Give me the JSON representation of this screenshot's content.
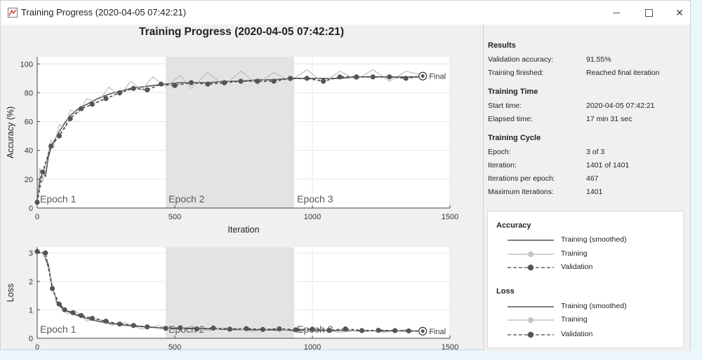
{
  "window": {
    "title": "Training Progress (2020-04-05 07:42:21)",
    "controls": {
      "minimize": "minimize-icon",
      "maximize": "maximize-icon",
      "close": "✕"
    }
  },
  "plot": {
    "title": "Training Progress (2020-04-05 07:42:21)",
    "epoch_labels": [
      "Epoch 1",
      "Epoch 2",
      "Epoch 3"
    ],
    "final_label": "Final"
  },
  "chart_data": [
    {
      "type": "line",
      "name": "accuracy",
      "xlabel": "Iteration",
      "ylabel": "Accuracy (%)",
      "xlim": [
        0,
        1500
      ],
      "ylim": [
        0,
        105
      ],
      "xticks": [
        0,
        500,
        1000,
        1500
      ],
      "yticks": [
        0,
        20,
        40,
        60,
        80,
        100
      ],
      "grid": true,
      "shaded_epochs": [
        [
          467,
          934
        ]
      ],
      "series": [
        {
          "name": "Training (smoothed)",
          "color": "#555555",
          "x": [
            0,
            10,
            20,
            30,
            40,
            50,
            60,
            80,
            100,
            120,
            150,
            180,
            220,
            260,
            300,
            340,
            380,
            420,
            467,
            520,
            560,
            620,
            680,
            740,
            800,
            860,
            920,
            980,
            1040,
            1100,
            1160,
            1220,
            1280,
            1340,
            1401
          ],
          "y": [
            5,
            20,
            25,
            22,
            35,
            42,
            46,
            53,
            59,
            64,
            69,
            72,
            76,
            79,
            81,
            83,
            84,
            85,
            86,
            87,
            87,
            87,
            88,
            88,
            89,
            89,
            90,
            90,
            90,
            90,
            91,
            91,
            91,
            91,
            91
          ]
        },
        {
          "name": "Training",
          "color": "#bdbdbd",
          "x": [
            0,
            10,
            20,
            30,
            40,
            50,
            60,
            80,
            100,
            120,
            150,
            180,
            220,
            260,
            300,
            340,
            380,
            420,
            467,
            520,
            560,
            620,
            680,
            740,
            800,
            860,
            920,
            980,
            1040,
            1100,
            1160,
            1220,
            1280,
            1340,
            1401
          ],
          "y": [
            5,
            28,
            18,
            30,
            38,
            47,
            42,
            58,
            55,
            68,
            66,
            76,
            73,
            84,
            78,
            88,
            82,
            91,
            84,
            92,
            83,
            94,
            85,
            95,
            86,
            94,
            88,
            96,
            87,
            95,
            89,
            96,
            88,
            95,
            92
          ]
        },
        {
          "name": "Validation",
          "color": "#444444",
          "dashed": true,
          "x": [
            0,
            20,
            50,
            80,
            120,
            160,
            200,
            250,
            300,
            350,
            400,
            450,
            500,
            560,
            620,
            680,
            740,
            800,
            860,
            920,
            980,
            1040,
            1100,
            1160,
            1220,
            1280,
            1340,
            1401
          ],
          "y": [
            4,
            25,
            43,
            50,
            62,
            69,
            72,
            76,
            80,
            83,
            82,
            86,
            85,
            87,
            86,
            87,
            88,
            88,
            88,
            90,
            90,
            88,
            91,
            91,
            91,
            91,
            90,
            91.55
          ]
        }
      ]
    },
    {
      "type": "line",
      "name": "loss",
      "xlabel": "",
      "ylabel": "Loss",
      "xlim": [
        0,
        1500
      ],
      "ylim": [
        0,
        3.2
      ],
      "xticks": [
        0,
        500,
        1000,
        1500
      ],
      "yticks": [
        0,
        1,
        2,
        3
      ],
      "grid": true,
      "shaded_epochs": [
        [
          467,
          934
        ]
      ],
      "series": [
        {
          "name": "Training (smoothed)",
          "color": "#555555",
          "x": [
            0,
            20,
            40,
            55,
            70,
            90,
            110,
            140,
            180,
            220,
            270,
            320,
            380,
            440,
            500,
            560,
            620,
            700,
            780,
            860,
            940,
            1020,
            1100,
            1180,
            1260,
            1340,
            1401
          ],
          "y": [
            3.0,
            3.0,
            2.6,
            1.8,
            1.3,
            1.05,
            0.95,
            0.82,
            0.7,
            0.6,
            0.52,
            0.46,
            0.41,
            0.37,
            0.35,
            0.34,
            0.33,
            0.31,
            0.3,
            0.29,
            0.28,
            0.27,
            0.27,
            0.26,
            0.26,
            0.26,
            0.25
          ]
        },
        {
          "name": "Training",
          "color": "#bdbdbd",
          "x": [
            0,
            20,
            40,
            55,
            70,
            90,
            110,
            140,
            180,
            220,
            270,
            320,
            380,
            440,
            500,
            560,
            620,
            700,
            780,
            860,
            940,
            1020,
            1100,
            1180,
            1260,
            1340,
            1401
          ],
          "y": [
            3.0,
            3.0,
            2.5,
            1.9,
            1.2,
            1.15,
            0.85,
            0.95,
            0.6,
            0.7,
            0.45,
            0.55,
            0.32,
            0.45,
            0.28,
            0.42,
            0.26,
            0.38,
            0.24,
            0.35,
            0.22,
            0.34,
            0.2,
            0.3,
            0.21,
            0.3,
            0.24
          ]
        },
        {
          "name": "Validation",
          "color": "#444444",
          "dashed": true,
          "x": [
            0,
            30,
            55,
            80,
            100,
            130,
            160,
            200,
            250,
            300,
            350,
            400,
            467,
            520,
            580,
            640,
            700,
            760,
            820,
            880,
            940,
            1000,
            1060,
            1120,
            1180,
            1240,
            1300,
            1350,
            1401
          ],
          "y": [
            3.05,
            3.0,
            1.75,
            1.2,
            1.0,
            0.9,
            0.8,
            0.7,
            0.6,
            0.5,
            0.45,
            0.4,
            0.35,
            0.37,
            0.33,
            0.36,
            0.32,
            0.34,
            0.31,
            0.33,
            0.3,
            0.32,
            0.28,
            0.33,
            0.27,
            0.28,
            0.27,
            0.26,
            0.25
          ]
        }
      ]
    }
  ],
  "panel": {
    "results": {
      "heading": "Results",
      "rows": [
        {
          "label": "Validation accuracy:",
          "value": "91.55%"
        },
        {
          "label": "Training finished:",
          "value": "Reached final iteration"
        }
      ]
    },
    "time": {
      "heading": "Training Time",
      "rows": [
        {
          "label": "Start time:",
          "value": "2020-04-05 07:42:21"
        },
        {
          "label": "Elapsed time:",
          "value": "17 min 31 sec"
        }
      ]
    },
    "cycle": {
      "heading": "Training Cycle",
      "rows": [
        {
          "label": "Epoch:",
          "value": "3 of 3"
        },
        {
          "label": "Iteration:",
          "value": "1401 of 1401"
        },
        {
          "label": "Iterations per epoch:",
          "value": "467"
        },
        {
          "label": "Maximum iterations:",
          "value": "1401"
        }
      ]
    },
    "legend": {
      "accuracy": {
        "heading": "Accuracy",
        "items": [
          "Training (smoothed)",
          "Training",
          "Validation"
        ]
      },
      "loss": {
        "heading": "Loss",
        "items": [
          "Training (smoothed)",
          "Training",
          "Validation"
        ]
      }
    }
  }
}
